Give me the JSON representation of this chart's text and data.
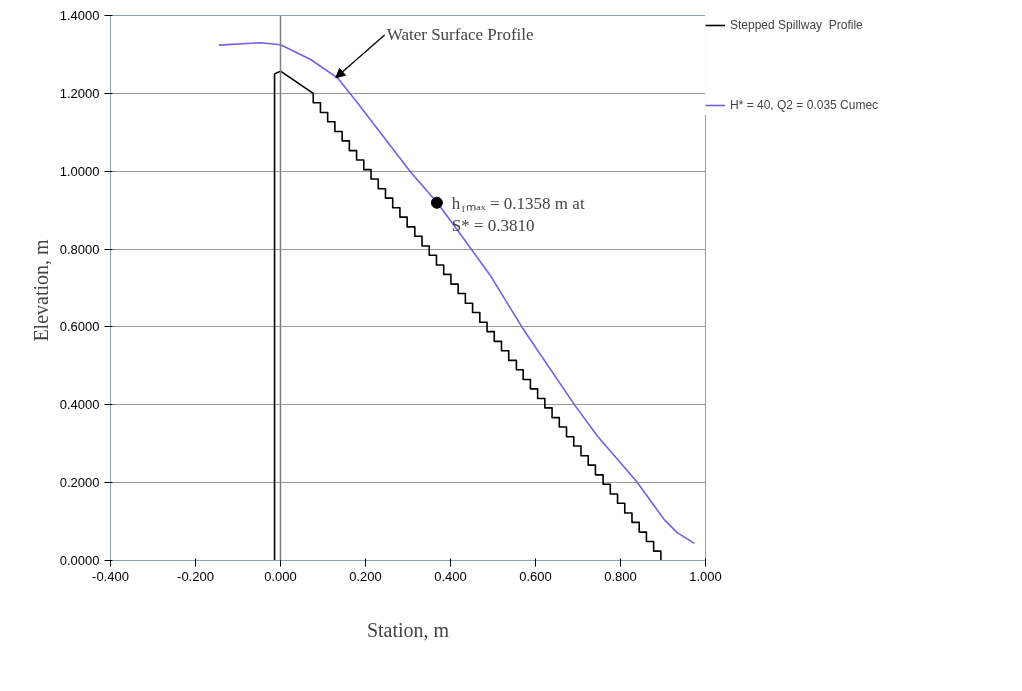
{
  "chart_data": {
    "type": "line",
    "xlabel": "Station, m",
    "ylabel": "Elevation,  m",
    "xlim": [
      -0.4,
      1.0
    ],
    "ylim": [
      0,
      1.4
    ],
    "xticks": [
      {
        "value": -0.4,
        "label": "-0.400"
      },
      {
        "value": -0.2,
        "label": "-0.200"
      },
      {
        "value": 0,
        "label": "0.000"
      },
      {
        "value": 0.2,
        "label": "0.200"
      },
      {
        "value": 0.4,
        "label": "0.400"
      },
      {
        "value": 0.6,
        "label": "0.600"
      },
      {
        "value": 0.8,
        "label": "0.800"
      },
      {
        "value": 1.0,
        "label": "1.000"
      }
    ],
    "yticks": [
      {
        "value": 0,
        "label": "0.0000"
      },
      {
        "value": 0.2,
        "label": "0.2000"
      },
      {
        "value": 0.4,
        "label": "0.4000"
      },
      {
        "value": 0.6,
        "label": "0.6000"
      },
      {
        "value": 0.8,
        "label": "0.8000"
      },
      {
        "value": 1.0,
        "label": "1.0000"
      },
      {
        "value": 1.2,
        "label": "1.2000"
      },
      {
        "value": 1.4,
        "label": "1.4000"
      }
    ],
    "grid": "y",
    "legend": "right",
    "marker": "none",
    "line_style": "solid",
    "ref_lines": [
      {
        "axis": "x",
        "value": 0,
        "color": "#808080"
      }
    ],
    "series": [
      {
        "name": "Stepped Spillway  Profile",
        "color": "#000000",
        "x": [
          -0.014,
          -0.014,
          0.0,
          0.077,
          0.077,
          0.094,
          0.094,
          0.111,
          0.111,
          0.128,
          0.128,
          0.145,
          0.145,
          0.162,
          0.162,
          0.179,
          0.179,
          0.196,
          0.196,
          0.213,
          0.213,
          0.23,
          0.23,
          0.247,
          0.247,
          0.264,
          0.264,
          0.281,
          0.281,
          0.298,
          0.298,
          0.316,
          0.316,
          0.333,
          0.333,
          0.35,
          0.35,
          0.367,
          0.367,
          0.384,
          0.384,
          0.401,
          0.401,
          0.418,
          0.418,
          0.435,
          0.435,
          0.452,
          0.452,
          0.469,
          0.469,
          0.486,
          0.486,
          0.503,
          0.503,
          0.52,
          0.52,
          0.537,
          0.537,
          0.555,
          0.555,
          0.571,
          0.571,
          0.588,
          0.588,
          0.605,
          0.605,
          0.622,
          0.622,
          0.639,
          0.639,
          0.656,
          0.656,
          0.673,
          0.673,
          0.69,
          0.69,
          0.707,
          0.707,
          0.724,
          0.724,
          0.741,
          0.741,
          0.759,
          0.759,
          0.776,
          0.776,
          0.793,
          0.793,
          0.81,
          0.81,
          0.827,
          0.827,
          0.844,
          0.844,
          0.861,
          0.861,
          0.878,
          0.878,
          0.895,
          0.895
        ],
        "values": [
          0,
          1.25,
          1.257,
          1.2,
          1.176,
          1.176,
          1.151,
          1.151,
          1.127,
          1.127,
          1.102,
          1.102,
          1.078,
          1.078,
          1.053,
          1.053,
          1.029,
          1.029,
          1.004,
          1.004,
          0.98,
          0.98,
          0.955,
          0.955,
          0.931,
          0.931,
          0.906,
          0.906,
          0.882,
          0.882,
          0.857,
          0.857,
          0.833,
          0.833,
          0.808,
          0.808,
          0.784,
          0.784,
          0.759,
          0.759,
          0.735,
          0.735,
          0.71,
          0.71,
          0.686,
          0.686,
          0.661,
          0.661,
          0.637,
          0.637,
          0.612,
          0.612,
          0.588,
          0.588,
          0.563,
          0.563,
          0.539,
          0.539,
          0.514,
          0.514,
          0.49,
          0.49,
          0.465,
          0.465,
          0.441,
          0.441,
          0.416,
          0.416,
          0.392,
          0.392,
          0.367,
          0.367,
          0.343,
          0.343,
          0.318,
          0.318,
          0.294,
          0.294,
          0.269,
          0.269,
          0.245,
          0.245,
          0.22,
          0.22,
          0.196,
          0.196,
          0.171,
          0.171,
          0.147,
          0.147,
          0.122,
          0.122,
          0.098,
          0.098,
          0.073,
          0.073,
          0.049,
          0.049,
          0.024,
          0.024,
          0
        ]
      },
      {
        "name": "H* = 40, Q2 = 0.035 Cumec",
        "color": "#7b5ce6",
        "x": [
          -0.145,
          -0.047,
          0.0,
          0.071,
          0.134,
          0.181,
          0.306,
          0.369,
          0.432,
          0.495,
          0.569,
          0.691,
          0.746,
          0.837,
          0.903,
          0.934,
          0.974
        ],
        "values": [
          1.324,
          1.33,
          1.325,
          1.287,
          1.24,
          1.176,
          0.998,
          0.919,
          0.825,
          0.73,
          0.598,
          0.401,
          0.319,
          0.204,
          0.105,
          0.071,
          0.044
        ]
      },
      {
        "type": "scatter",
        "marker": "circle",
        "color": "#000000",
        "x": [
          0.368
        ],
        "values": [
          0.919
        ]
      }
    ],
    "annotations": [
      {
        "text": "Water Surface Profile",
        "x": 0.13,
        "y": 1.24
      },
      {
        "text": "h₁ₘₐₓ = 0.1358 m at\nS* = 0.3810",
        "x": 0.368,
        "y": 0.919
      }
    ]
  }
}
